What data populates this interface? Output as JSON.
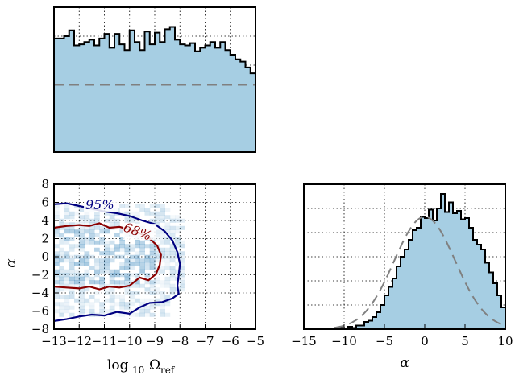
{
  "colors": {
    "hist_fill": "#a6cee3",
    "hist_line": "#000000",
    "prior_line": "#808080",
    "contour_68": "#8b0000",
    "contour_95": "#000080",
    "density": "#1f77b4",
    "grid": "#000000"
  },
  "chart_data": [
    {
      "name": "omega-marginal",
      "type": "bar",
      "title": "",
      "xlabel": "",
      "ylabel": "",
      "xlim": [
        -13,
        -5
      ],
      "ylim": [
        0,
        1.25
      ],
      "grid": true,
      "x_start": -13.0,
      "bin_width": 0.2,
      "values": [
        0.98,
        0.98,
        1.0,
        1.05,
        0.92,
        0.93,
        0.95,
        0.97,
        0.92,
        0.98,
        1.02,
        0.9,
        1.02,
        0.93,
        0.88,
        1.05,
        0.95,
        0.88,
        1.04,
        0.93,
        1.03,
        0.95,
        1.06,
        1.08,
        0.97,
        0.93,
        0.92,
        0.94,
        0.87,
        0.9,
        0.92,
        0.95,
        0.9,
        0.95,
        0.88,
        0.84,
        0.8,
        0.78,
        0.73,
        0.68,
        0.65,
        0.62,
        0.57,
        0.52,
        0.46,
        0.38,
        0.29,
        0.2,
        0.11,
        0.03,
        0.0,
        0.0,
        0.0,
        0.0,
        0.0,
        0.0,
        0.0,
        0.0,
        0.0,
        0.0,
        0.0,
        0.0,
        0.0,
        0.0,
        0.0,
        0.0,
        0.0,
        0.0,
        0.0,
        0.0
      ],
      "prior_level": 0.58
    },
    {
      "name": "joint-posterior",
      "type": "scatter",
      "title": "",
      "xlabel": "log",
      "xlabel_sub": "10",
      "xlabel_symbol": "Ω",
      "xlabel_symbol_sub": "ref",
      "ylabel": "α",
      "xlim": [
        -13,
        -5
      ],
      "ylim": [
        -8,
        8
      ],
      "grid": true,
      "x_ticks": [
        "−13",
        "−12",
        "−11",
        "−10",
        "−9",
        "−8",
        "−7",
        "−6",
        "−5"
      ],
      "y_ticks": [
        "8",
        "6",
        "4",
        "2",
        "0",
        "−2",
        "−4",
        "−6",
        "−8"
      ],
      "contours": [
        {
          "label": "95%",
          "level": "95%",
          "color": "#000080",
          "points": [
            [
              -13,
              5.8
            ],
            [
              -12.5,
              5.9
            ],
            [
              -12,
              5.6
            ],
            [
              -11.5,
              5.3
            ],
            [
              -11,
              5.0
            ],
            [
              -10.5,
              4.8
            ],
            [
              -10,
              4.5
            ],
            [
              -9.5,
              4.0
            ],
            [
              -9,
              3.6
            ],
            [
              -8.6,
              2.8
            ],
            [
              -8.3,
              1.8
            ],
            [
              -8.1,
              0.5
            ],
            [
              -8.0,
              -0.8
            ],
            [
              -8.05,
              -2.0
            ],
            [
              -8.1,
              -3.2
            ],
            [
              -8.05,
              -4.1
            ],
            [
              -8.3,
              -4.6
            ],
            [
              -8.7,
              -5.0
            ],
            [
              -9.2,
              -5.1
            ],
            [
              -9.6,
              -5.6
            ],
            [
              -10.0,
              -6.3
            ],
            [
              -10.5,
              -6.1
            ],
            [
              -11.0,
              -6.5
            ],
            [
              -11.5,
              -6.4
            ],
            [
              -12.0,
              -6.6
            ],
            [
              -12.5,
              -6.9
            ],
            [
              -13.0,
              -7.1
            ]
          ]
        },
        {
          "label": "68%",
          "level": "68%",
          "color": "#8b0000",
          "points": [
            [
              -13,
              3.2
            ],
            [
              -12.5,
              3.4
            ],
            [
              -12,
              3.5
            ],
            [
              -11.6,
              3.4
            ],
            [
              -11.2,
              3.7
            ],
            [
              -10.8,
              3.2
            ],
            [
              -10.4,
              3.3
            ],
            [
              -10.0,
              3.0
            ],
            [
              -9.6,
              2.6
            ],
            [
              -9.2,
              2.0
            ],
            [
              -8.9,
              1.2
            ],
            [
              -8.75,
              0.2
            ],
            [
              -8.8,
              -0.9
            ],
            [
              -8.95,
              -1.9
            ],
            [
              -9.25,
              -2.6
            ],
            [
              -9.6,
              -2.3
            ],
            [
              -10.0,
              -3.2
            ],
            [
              -10.4,
              -3.4
            ],
            [
              -10.8,
              -3.3
            ],
            [
              -11.2,
              -3.6
            ],
            [
              -11.6,
              -3.3
            ],
            [
              -12.0,
              -3.5
            ],
            [
              -12.5,
              -3.4
            ],
            [
              -13.0,
              -3.3
            ]
          ]
        }
      ]
    },
    {
      "name": "alpha-marginal",
      "type": "bar",
      "title": "",
      "xlabel": "α",
      "ylabel": "",
      "xlim": [
        -15,
        10
      ],
      "ylim": [
        0,
        1.2
      ],
      "grid": true,
      "x_ticks": [
        "−15",
        "−10",
        "−5",
        "0",
        "5",
        "10"
      ],
      "x_start": -12.0,
      "bin_width": 0.5,
      "values": [
        0.0,
        0.0,
        0.01,
        0.01,
        0.0,
        0.02,
        0.01,
        0.03,
        0.03,
        0.06,
        0.07,
        0.1,
        0.14,
        0.2,
        0.28,
        0.35,
        0.42,
        0.52,
        0.6,
        0.66,
        0.74,
        0.82,
        0.84,
        0.93,
        0.92,
        0.99,
        0.9,
        1.0,
        1.12,
        0.97,
        1.05,
        0.96,
        0.98,
        0.91,
        0.92,
        0.84,
        0.74,
        0.7,
        0.66,
        0.55,
        0.47,
        0.38,
        0.28,
        0.18,
        0.1,
        0.04,
        0.02,
        0.0
      ],
      "prior_mean": 0.0,
      "prior_sigma": 3.8,
      "prior_peak": 0.93
    }
  ]
}
